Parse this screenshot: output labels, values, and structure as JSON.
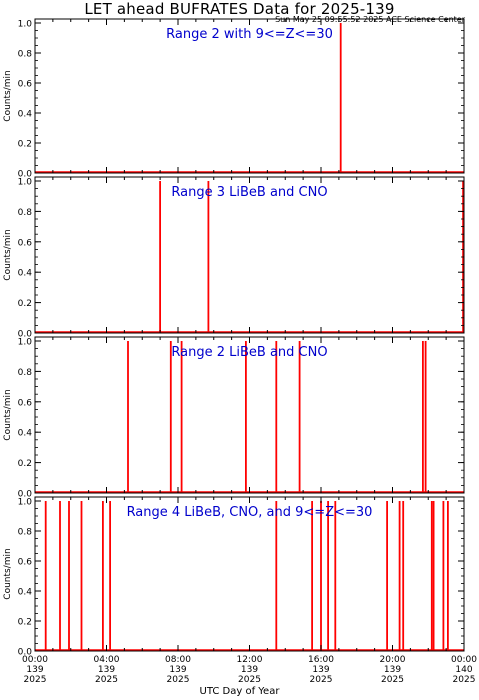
{
  "header": {
    "title": "LET ahead BUFRATES Data for 2025-139",
    "timestamp": "Sun May 25 09:55:52 2025 ACE Science Center"
  },
  "xaxis": {
    "label": "UTC Day of Year",
    "ticks": [
      {
        "time": "00:00",
        "doy": "139",
        "year": "2025"
      },
      {
        "time": "04:00",
        "doy": "139",
        "year": "2025"
      },
      {
        "time": "08:00",
        "doy": "139",
        "year": "2025"
      },
      {
        "time": "12:00",
        "doy": "139",
        "year": "2025"
      },
      {
        "time": "16:00",
        "doy": "139",
        "year": "2025"
      },
      {
        "time": "20:00",
        "doy": "139",
        "year": "2025"
      },
      {
        "time": "00:00",
        "doy": "140",
        "year": "2025"
      }
    ]
  },
  "colors": {
    "series": "#ff0000",
    "panel_label": "#0000cc",
    "axis": "#000000"
  },
  "chart_data": [
    {
      "type": "line",
      "title": "Range 2 with 9<=Z<=30",
      "ylabel": "Counts/min",
      "xlim": [
        0,
        24
      ],
      "ylim": [
        0,
        1
      ],
      "yticks": [
        "0.0",
        "0.2",
        "0.4",
        "0.6",
        "0.8",
        "1.0"
      ],
      "spikes_hours": [
        17.1
      ]
    },
    {
      "type": "line",
      "title": "Range 3 LiBeB and CNO",
      "ylabel": "Counts/min",
      "xlim": [
        0,
        24
      ],
      "ylim": [
        0,
        1
      ],
      "yticks": [
        "0.0",
        "0.2",
        "0.4",
        "0.6",
        "0.8",
        "1.0"
      ],
      "spikes_hours": [
        7.0,
        9.7,
        23.95
      ]
    },
    {
      "type": "line",
      "title": "Range 2 LiBeB and CNO",
      "ylabel": "Counts/min",
      "xlim": [
        0,
        24
      ],
      "ylim": [
        0,
        1
      ],
      "yticks": [
        "0.0",
        "0.2",
        "0.4",
        "0.6",
        "0.8",
        "1.0"
      ],
      "spikes_hours": [
        5.2,
        7.6,
        8.2,
        11.8,
        13.5,
        14.8,
        21.7,
        21.85
      ]
    },
    {
      "type": "line",
      "title": "Range 4 LiBeB, CNO, and 9<=Z<=30",
      "ylabel": "Counts/min",
      "xlim": [
        0,
        24
      ],
      "ylim": [
        0,
        1
      ],
      "yticks": [
        "0.0",
        "0.2",
        "0.4",
        "0.6",
        "0.8",
        "1.0"
      ],
      "spikes_hours": [
        0.6,
        1.4,
        1.9,
        2.6,
        3.8,
        4.2,
        13.5,
        15.5,
        16.0,
        16.4,
        16.8,
        19.7,
        20.4,
        20.6,
        22.2,
        22.3,
        22.85,
        23.1
      ]
    }
  ]
}
